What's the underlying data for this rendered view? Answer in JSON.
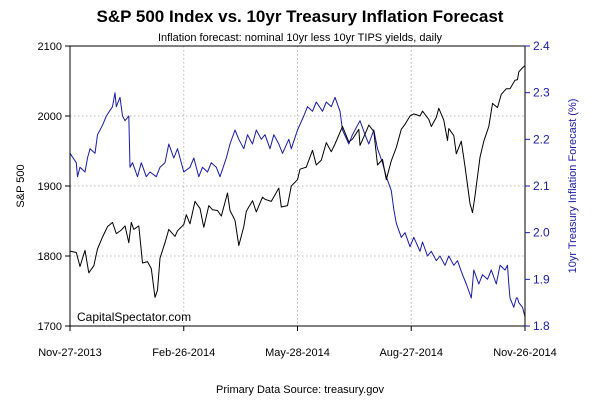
{
  "chart_data": {
    "type": "line",
    "title": "S&P 500 Index vs. 10yr Treasury Inflation Forecast",
    "subtitle": "Inflation forecast: nominal 10yr less 10yr TIPS yields, daily",
    "ylabel_left": "S&P 500",
    "ylabel_right": "10yr Treasury Inflation Forecast (%)",
    "source": "Primary Data Source: treasury.gov",
    "watermark": "CapitalSpectator.com",
    "x_range": [
      "2013-11-27",
      "2014-11-26"
    ],
    "x_ticks": [
      "2013-11-27",
      "2014-02-26",
      "2014-05-28",
      "2014-08-27",
      "2014-11-26"
    ],
    "x_tick_labels": [
      "Nov-27-2013",
      "Feb-26-2014",
      "May-28-2014",
      "Aug-27-2014",
      "Nov-26-2014"
    ],
    "y_left": {
      "range": [
        1700,
        2100
      ],
      "ticks": [
        1700,
        1800,
        1900,
        2000,
        2100
      ]
    },
    "y_right": {
      "range": [
        1.8,
        2.4
      ],
      "ticks": [
        1.8,
        1.9,
        2.0,
        2.1,
        2.2,
        2.3,
        2.4
      ]
    },
    "grid": true,
    "colors": {
      "sp500": "#000000",
      "inflation": "#1a1aa8",
      "right_axis": "#1a1aa8"
    },
    "series": [
      {
        "axis": "left",
        "color": "#000000",
        "points": [
          [
            "2013-11-27",
            1807
          ],
          [
            "2013-12-02",
            1805
          ],
          [
            "2013-12-05",
            1785
          ],
          [
            "2013-12-09",
            1808
          ],
          [
            "2013-12-12",
            1776
          ],
          [
            "2013-12-16",
            1786
          ],
          [
            "2013-12-19",
            1810
          ],
          [
            "2013-12-23",
            1827
          ],
          [
            "2013-12-27",
            1842
          ],
          [
            "2013-12-31",
            1848
          ],
          [
            "2014-01-03",
            1832
          ],
          [
            "2014-01-07",
            1837
          ],
          [
            "2014-01-10",
            1843
          ],
          [
            "2014-01-13",
            1819
          ],
          [
            "2014-01-15",
            1848
          ],
          [
            "2014-01-17",
            1838
          ],
          [
            "2014-01-21",
            1843
          ],
          [
            "2014-01-24",
            1790
          ],
          [
            "2014-01-28",
            1792
          ],
          [
            "2014-01-31",
            1782
          ],
          [
            "2014-02-03",
            1741
          ],
          [
            "2014-02-05",
            1751
          ],
          [
            "2014-02-07",
            1797
          ],
          [
            "2014-02-11",
            1819
          ],
          [
            "2014-02-14",
            1838
          ],
          [
            "2014-02-19",
            1828
          ],
          [
            "2014-02-21",
            1836
          ],
          [
            "2014-02-26",
            1845
          ],
          [
            "2014-02-28",
            1859
          ],
          [
            "2014-03-03",
            1846
          ],
          [
            "2014-03-07",
            1878
          ],
          [
            "2014-03-11",
            1868
          ],
          [
            "2014-03-14",
            1841
          ],
          [
            "2014-03-18",
            1872
          ],
          [
            "2014-03-21",
            1866
          ],
          [
            "2014-03-25",
            1865
          ],
          [
            "2014-03-28",
            1857
          ],
          [
            "2014-04-02",
            1890
          ],
          [
            "2014-04-04",
            1865
          ],
          [
            "2014-04-08",
            1851
          ],
          [
            "2014-04-11",
            1815
          ],
          [
            "2014-04-15",
            1842
          ],
          [
            "2014-04-17",
            1864
          ],
          [
            "2014-04-22",
            1879
          ],
          [
            "2014-04-25",
            1863
          ],
          [
            "2014-04-30",
            1884
          ],
          [
            "2014-05-02",
            1881
          ],
          [
            "2014-05-07",
            1878
          ],
          [
            "2014-05-13",
            1897
          ],
          [
            "2014-05-15",
            1870
          ],
          [
            "2014-05-20",
            1872
          ],
          [
            "2014-05-23",
            1900
          ],
          [
            "2014-05-28",
            1909
          ],
          [
            "2014-05-30",
            1924
          ],
          [
            "2014-06-04",
            1927
          ],
          [
            "2014-06-09",
            1951
          ],
          [
            "2014-06-12",
            1930
          ],
          [
            "2014-06-16",
            1937
          ],
          [
            "2014-06-20",
            1962
          ],
          [
            "2014-06-24",
            1949
          ],
          [
            "2014-06-27",
            1960
          ],
          [
            "2014-07-03",
            1985
          ],
          [
            "2014-07-08",
            1963
          ],
          [
            "2014-07-11",
            1967
          ],
          [
            "2014-07-16",
            1981
          ],
          [
            "2014-07-17",
            1958
          ],
          [
            "2014-07-21",
            1974
          ],
          [
            "2014-07-24",
            1987
          ],
          [
            "2014-07-28",
            1978
          ],
          [
            "2014-07-31",
            1930
          ],
          [
            "2014-08-04",
            1938
          ],
          [
            "2014-08-07",
            1909
          ],
          [
            "2014-08-11",
            1936
          ],
          [
            "2014-08-15",
            1955
          ],
          [
            "2014-08-19",
            1981
          ],
          [
            "2014-08-22",
            1988
          ],
          [
            "2014-08-26",
            2000
          ],
          [
            "2014-08-29",
            2003
          ],
          [
            "2014-09-03",
            2000
          ],
          [
            "2014-09-05",
            2007
          ],
          [
            "2014-09-10",
            1995
          ],
          [
            "2014-09-12",
            1985
          ],
          [
            "2014-09-16",
            1998
          ],
          [
            "2014-09-18",
            2011
          ],
          [
            "2014-09-22",
            1994
          ],
          [
            "2014-09-25",
            1965
          ],
          [
            "2014-09-26",
            1982
          ],
          [
            "2014-09-30",
            1972
          ],
          [
            "2014-10-02",
            1946
          ],
          [
            "2014-10-06",
            1964
          ],
          [
            "2014-10-09",
            1928
          ],
          [
            "2014-10-13",
            1875
          ],
          [
            "2014-10-15",
            1862
          ],
          [
            "2014-10-17",
            1886
          ],
          [
            "2014-10-21",
            1941
          ],
          [
            "2014-10-24",
            1964
          ],
          [
            "2014-10-28",
            1985
          ],
          [
            "2014-10-31",
            2018
          ],
          [
            "2014-11-04",
            2012
          ],
          [
            "2014-11-07",
            2031
          ],
          [
            "2014-11-11",
            2039
          ],
          [
            "2014-11-14",
            2039
          ],
          [
            "2014-11-18",
            2051
          ],
          [
            "2014-11-20",
            2052
          ],
          [
            "2014-11-21",
            2063
          ],
          [
            "2014-11-24",
            2069
          ],
          [
            "2014-11-26",
            2072
          ]
        ]
      },
      {
        "axis": "right",
        "color": "#1a1aa8",
        "points": [
          [
            "2013-11-27",
            2.17
          ],
          [
            "2013-12-02",
            2.15
          ],
          [
            "2013-12-03",
            2.12
          ],
          [
            "2013-12-05",
            2.14
          ],
          [
            "2013-12-09",
            2.13
          ],
          [
            "2013-12-11",
            2.16
          ],
          [
            "2013-12-13",
            2.18
          ],
          [
            "2013-12-17",
            2.17
          ],
          [
            "2013-12-19",
            2.21
          ],
          [
            "2013-12-23",
            2.23
          ],
          [
            "2013-12-26",
            2.25
          ],
          [
            "2013-12-31",
            2.27
          ],
          [
            "2014-01-02",
            2.3
          ],
          [
            "2014-01-03",
            2.27
          ],
          [
            "2014-01-06",
            2.29
          ],
          [
            "2014-01-08",
            2.25
          ],
          [
            "2014-01-10",
            2.24
          ],
          [
            "2014-01-13",
            2.25
          ],
          [
            "2014-01-14",
            2.14
          ],
          [
            "2014-01-16",
            2.15
          ],
          [
            "2014-01-20",
            2.12
          ],
          [
            "2014-01-23",
            2.15
          ],
          [
            "2014-01-27",
            2.12
          ],
          [
            "2014-01-30",
            2.13
          ],
          [
            "2014-02-04",
            2.12
          ],
          [
            "2014-02-07",
            2.14
          ],
          [
            "2014-02-11",
            2.15
          ],
          [
            "2014-02-14",
            2.19
          ],
          [
            "2014-02-18",
            2.16
          ],
          [
            "2014-02-21",
            2.18
          ],
          [
            "2014-02-26",
            2.13
          ],
          [
            "2014-03-03",
            2.14
          ],
          [
            "2014-03-06",
            2.16
          ],
          [
            "2014-03-10",
            2.12
          ],
          [
            "2014-03-13",
            2.14
          ],
          [
            "2014-03-17",
            2.13
          ],
          [
            "2014-03-20",
            2.15
          ],
          [
            "2014-03-24",
            2.14
          ],
          [
            "2014-03-27",
            2.12
          ],
          [
            "2014-04-01",
            2.16
          ],
          [
            "2014-04-04",
            2.19
          ],
          [
            "2014-04-08",
            2.22
          ],
          [
            "2014-04-11",
            2.2
          ],
          [
            "2014-04-15",
            2.18
          ],
          [
            "2014-04-18",
            2.21
          ],
          [
            "2014-04-22",
            2.19
          ],
          [
            "2014-04-25",
            2.22
          ],
          [
            "2014-04-29",
            2.2
          ],
          [
            "2014-05-02",
            2.21
          ],
          [
            "2014-05-06",
            2.18
          ],
          [
            "2014-05-09",
            2.21
          ],
          [
            "2014-05-13",
            2.19
          ],
          [
            "2014-05-16",
            2.17
          ],
          [
            "2014-05-21",
            2.2
          ],
          [
            "2014-05-23",
            2.18
          ],
          [
            "2014-05-28",
            2.22
          ],
          [
            "2014-06-02",
            2.25
          ],
          [
            "2014-06-05",
            2.27
          ],
          [
            "2014-06-09",
            2.26
          ],
          [
            "2014-06-12",
            2.28
          ],
          [
            "2014-06-17",
            2.26
          ],
          [
            "2014-06-20",
            2.28
          ],
          [
            "2014-06-24",
            2.27
          ],
          [
            "2014-06-27",
            2.29
          ],
          [
            "2014-07-01",
            2.26
          ],
          [
            "2014-07-03",
            2.22
          ],
          [
            "2014-07-08",
            2.19
          ],
          [
            "2014-07-11",
            2.21
          ],
          [
            "2014-07-15",
            2.23
          ],
          [
            "2014-07-17",
            2.24
          ],
          [
            "2014-07-21",
            2.21
          ],
          [
            "2014-07-24",
            2.19
          ],
          [
            "2014-07-28",
            2.22
          ],
          [
            "2014-07-31",
            2.18
          ],
          [
            "2014-08-04",
            2.15
          ],
          [
            "2014-08-07",
            2.12
          ],
          [
            "2014-08-11",
            2.09
          ],
          [
            "2014-08-13",
            2.05
          ],
          [
            "2014-08-15",
            2.02
          ],
          [
            "2014-08-19",
            1.99
          ],
          [
            "2014-08-22",
            2.0
          ],
          [
            "2014-08-26",
            1.97
          ],
          [
            "2014-08-29",
            1.99
          ],
          [
            "2014-09-03",
            1.96
          ],
          [
            "2014-09-05",
            1.98
          ],
          [
            "2014-09-09",
            1.95
          ],
          [
            "2014-09-12",
            1.96
          ],
          [
            "2014-09-16",
            1.94
          ],
          [
            "2014-09-19",
            1.95
          ],
          [
            "2014-09-23",
            1.93
          ],
          [
            "2014-09-26",
            1.95
          ],
          [
            "2014-09-30",
            1.93
          ],
          [
            "2014-10-03",
            1.94
          ],
          [
            "2014-10-07",
            1.91
          ],
          [
            "2014-10-10",
            1.89
          ],
          [
            "2014-10-14",
            1.86
          ],
          [
            "2014-10-16",
            1.92
          ],
          [
            "2014-10-20",
            1.89
          ],
          [
            "2014-10-23",
            1.91
          ],
          [
            "2014-10-27",
            1.9
          ],
          [
            "2014-10-30",
            1.92
          ],
          [
            "2014-11-03",
            1.89
          ],
          [
            "2014-11-06",
            1.93
          ],
          [
            "2014-11-10",
            1.92
          ],
          [
            "2014-11-12",
            1.93
          ],
          [
            "2014-11-13",
            1.89
          ],
          [
            "2014-11-14",
            1.86
          ],
          [
            "2014-11-17",
            1.84
          ],
          [
            "2014-11-19",
            1.86
          ],
          [
            "2014-11-20",
            1.86
          ],
          [
            "2014-11-21",
            1.85
          ],
          [
            "2014-11-24",
            1.84
          ],
          [
            "2014-11-26",
            1.82
          ]
        ]
      }
    ]
  }
}
